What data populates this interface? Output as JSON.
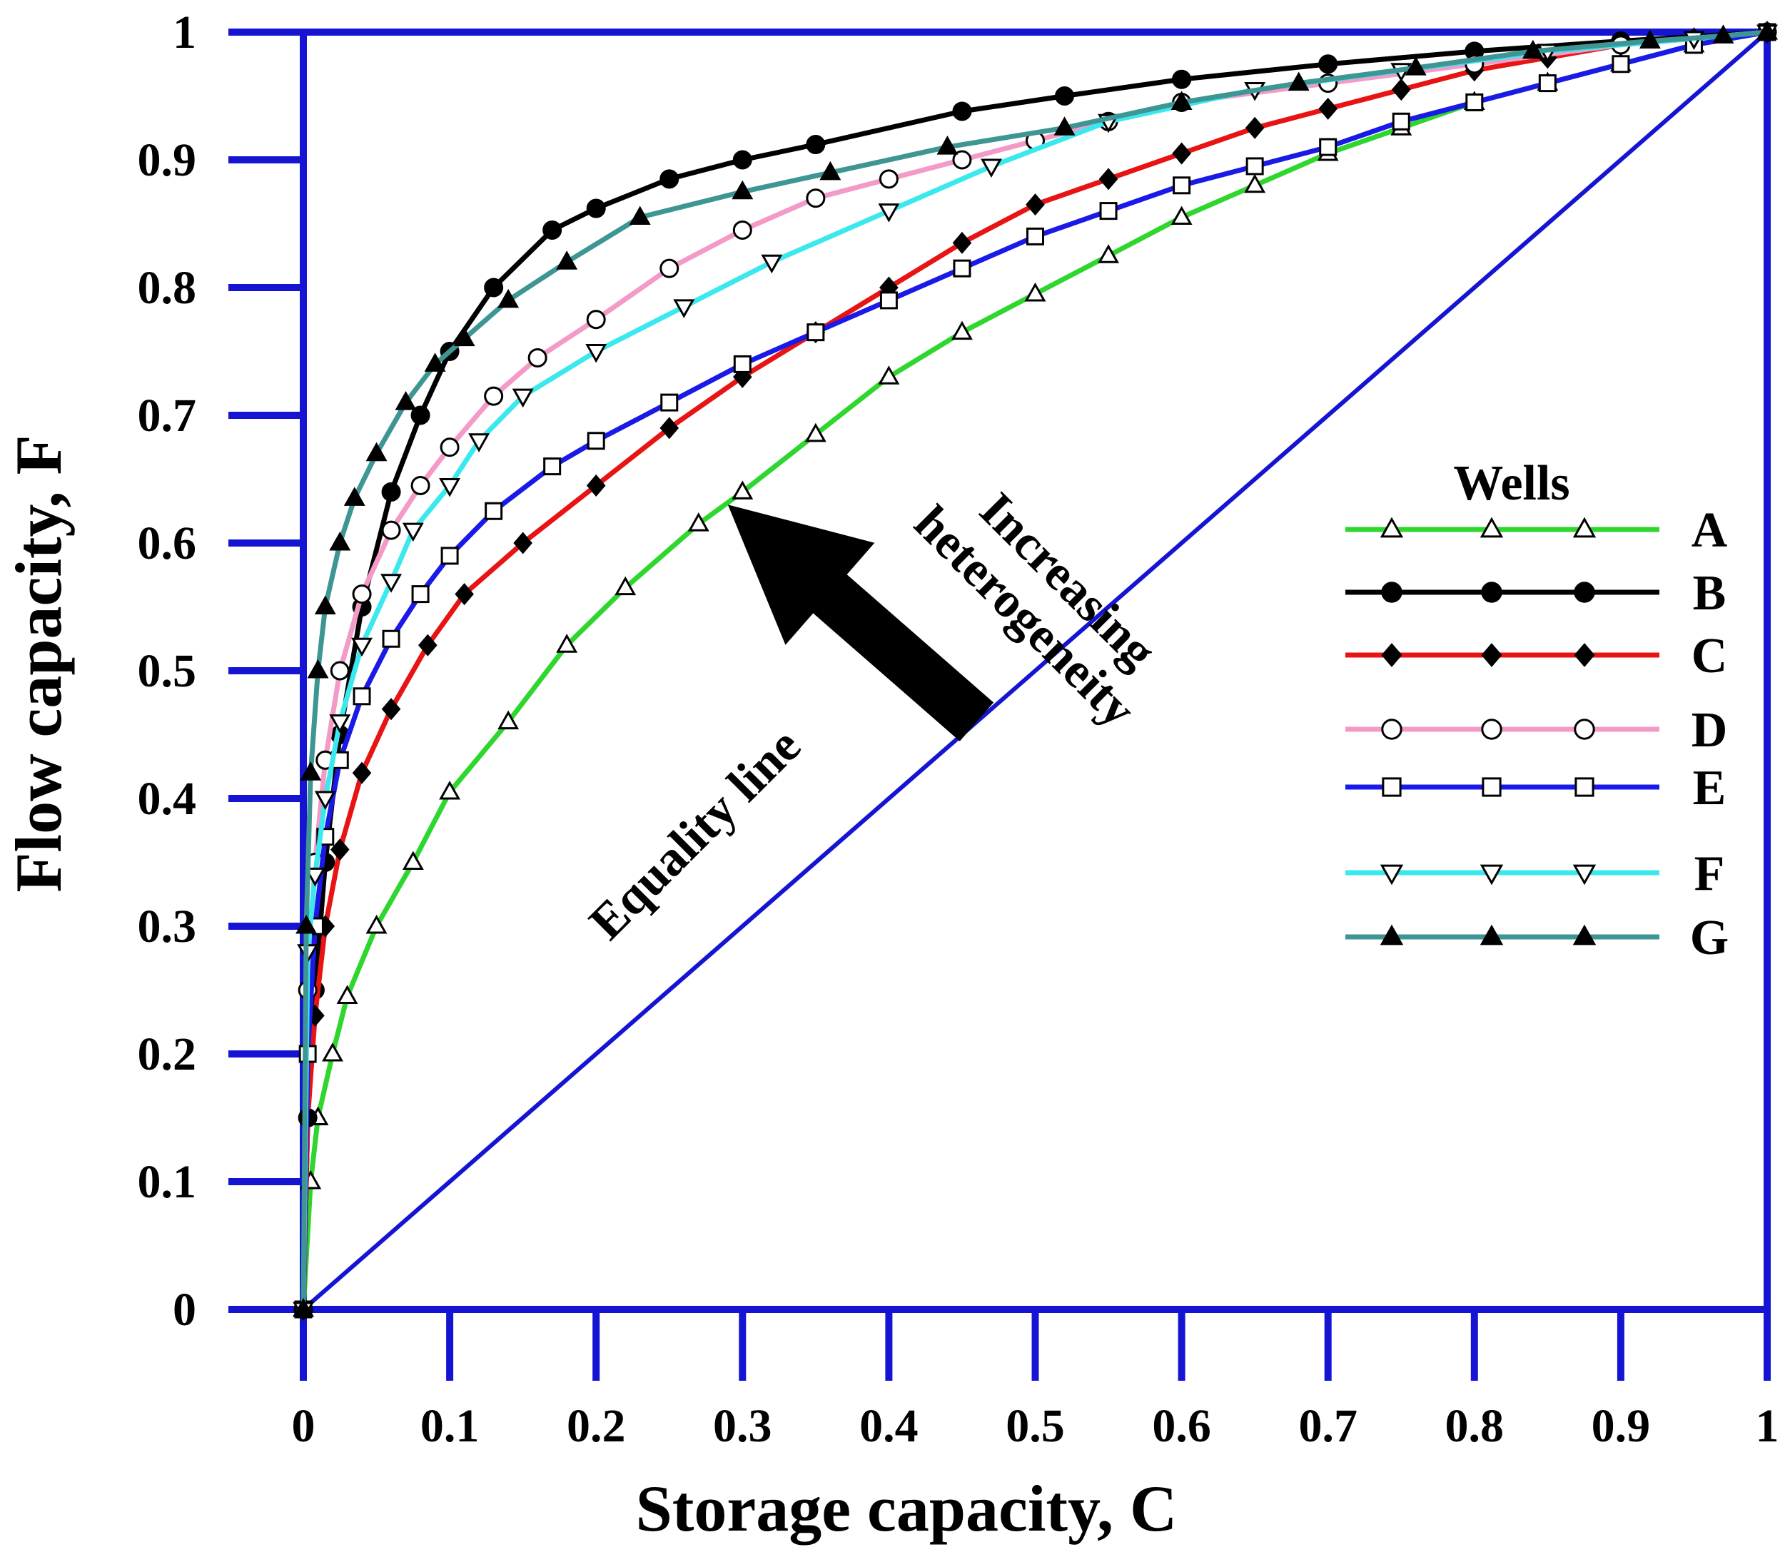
{
  "chart_data": {
    "type": "line",
    "title": "",
    "xlabel": "Storage capacity, C",
    "ylabel": "Flow capacity, F",
    "xlim": [
      0,
      1
    ],
    "ylim": [
      0,
      1
    ],
    "x_ticks": [
      "0",
      "0.1",
      "0.2",
      "0.3",
      "0.4",
      "0.5",
      "0.6",
      "0.7",
      "0.8",
      "0.9",
      "1"
    ],
    "y_ticks": [
      "0",
      "0.1",
      "0.2",
      "0.3",
      "0.4",
      "0.5",
      "0.6",
      "0.7",
      "0.8",
      "0.9",
      "1"
    ],
    "legend_title": "Wells",
    "legend_position": "right",
    "reference_line": {
      "label": "Equality line",
      "color": "#1414d2",
      "x": [
        0,
        1
      ],
      "y": [
        0,
        1
      ]
    },
    "annotation": {
      "text_lines": [
        "Increasing",
        "heterogeneity"
      ],
      "arrow_from": [
        0.46,
        0.46
      ],
      "arrow_to": [
        0.29,
        0.63
      ]
    },
    "series": [
      {
        "name": "A",
        "color": "#2ed62e",
        "marker": "triangle-up-open",
        "x": [
          0,
          0.005,
          0.01,
          0.02,
          0.03,
          0.05,
          0.075,
          0.1,
          0.14,
          0.18,
          0.22,
          0.27,
          0.3,
          0.35,
          0.4,
          0.45,
          0.5,
          0.55,
          0.6,
          0.65,
          0.7,
          0.75,
          0.8,
          0.85,
          0.9,
          0.95,
          1
        ],
        "y": [
          0,
          0.1,
          0.15,
          0.2,
          0.245,
          0.3,
          0.35,
          0.405,
          0.46,
          0.52,
          0.565,
          0.615,
          0.64,
          0.685,
          0.73,
          0.765,
          0.795,
          0.825,
          0.855,
          0.88,
          0.905,
          0.925,
          0.945,
          0.96,
          0.975,
          0.99,
          1
        ]
      },
      {
        "name": "B",
        "color": "#000000",
        "marker": "circle-filled",
        "x": [
          0,
          0.003,
          0.008,
          0.015,
          0.025,
          0.04,
          0.06,
          0.08,
          0.1,
          0.13,
          0.17,
          0.2,
          0.25,
          0.3,
          0.35,
          0.45,
          0.52,
          0.6,
          0.7,
          0.8,
          0.9,
          1
        ],
        "y": [
          0,
          0.15,
          0.25,
          0.35,
          0.45,
          0.55,
          0.64,
          0.7,
          0.75,
          0.8,
          0.845,
          0.862,
          0.885,
          0.9,
          0.912,
          0.938,
          0.95,
          0.963,
          0.975,
          0.985,
          0.993,
          1
        ]
      },
      {
        "name": "C",
        "color": "#e81414",
        "marker": "diamond-filled",
        "x": [
          0,
          0.003,
          0.008,
          0.015,
          0.025,
          0.04,
          0.06,
          0.085,
          0.11,
          0.15,
          0.2,
          0.25,
          0.3,
          0.35,
          0.4,
          0.45,
          0.5,
          0.55,
          0.6,
          0.65,
          0.7,
          0.75,
          0.8,
          0.85,
          0.9,
          0.95,
          1
        ],
        "y": [
          0,
          0.15,
          0.23,
          0.3,
          0.36,
          0.42,
          0.47,
          0.52,
          0.56,
          0.6,
          0.645,
          0.69,
          0.73,
          0.765,
          0.8,
          0.835,
          0.865,
          0.885,
          0.905,
          0.925,
          0.94,
          0.955,
          0.97,
          0.98,
          0.99,
          0.995,
          1
        ]
      },
      {
        "name": "D",
        "color": "#f39ac7",
        "marker": "circle-open",
        "x": [
          0,
          0.003,
          0.008,
          0.015,
          0.025,
          0.04,
          0.06,
          0.08,
          0.1,
          0.13,
          0.16,
          0.2,
          0.25,
          0.3,
          0.35,
          0.4,
          0.45,
          0.5,
          0.55,
          0.6,
          0.7,
          0.8,
          0.9,
          1
        ],
        "y": [
          0,
          0.25,
          0.35,
          0.43,
          0.5,
          0.56,
          0.61,
          0.645,
          0.675,
          0.715,
          0.745,
          0.775,
          0.815,
          0.845,
          0.87,
          0.885,
          0.9,
          0.915,
          0.93,
          0.945,
          0.96,
          0.975,
          0.99,
          1
        ]
      },
      {
        "name": "E",
        "color": "#1a1ae8",
        "marker": "square-open",
        "x": [
          0,
          0.003,
          0.008,
          0.015,
          0.025,
          0.04,
          0.06,
          0.08,
          0.1,
          0.13,
          0.17,
          0.2,
          0.25,
          0.3,
          0.35,
          0.4,
          0.45,
          0.5,
          0.55,
          0.6,
          0.65,
          0.7,
          0.75,
          0.8,
          0.85,
          0.9,
          0.95,
          1
        ],
        "y": [
          0,
          0.2,
          0.3,
          0.37,
          0.43,
          0.48,
          0.525,
          0.56,
          0.59,
          0.625,
          0.66,
          0.68,
          0.71,
          0.74,
          0.765,
          0.79,
          0.815,
          0.84,
          0.86,
          0.88,
          0.895,
          0.91,
          0.93,
          0.945,
          0.96,
          0.975,
          0.99,
          1
        ]
      },
      {
        "name": "F",
        "color": "#3ae8ee",
        "marker": "triangle-down-open",
        "x": [
          0,
          0.003,
          0.008,
          0.015,
          0.025,
          0.04,
          0.06,
          0.075,
          0.1,
          0.12,
          0.15,
          0.2,
          0.26,
          0.32,
          0.4,
          0.47,
          0.55,
          0.65,
          0.75,
          0.85,
          0.95,
          1
        ],
        "y": [
          0,
          0.28,
          0.34,
          0.4,
          0.46,
          0.52,
          0.57,
          0.61,
          0.645,
          0.68,
          0.715,
          0.75,
          0.785,
          0.82,
          0.86,
          0.895,
          0.93,
          0.955,
          0.97,
          0.985,
          0.995,
          1
        ]
      },
      {
        "name": "G",
        "color": "#3e9694",
        "marker": "triangle-up-filled",
        "x": [
          0,
          0.002,
          0.005,
          0.01,
          0.015,
          0.025,
          0.035,
          0.05,
          0.07,
          0.09,
          0.11,
          0.14,
          0.18,
          0.23,
          0.3,
          0.36,
          0.44,
          0.52,
          0.6,
          0.68,
          0.76,
          0.84,
          0.92,
          0.97,
          1
        ],
        "y": [
          0,
          0.3,
          0.42,
          0.5,
          0.55,
          0.6,
          0.635,
          0.67,
          0.71,
          0.74,
          0.76,
          0.79,
          0.82,
          0.855,
          0.875,
          0.89,
          0.91,
          0.925,
          0.945,
          0.96,
          0.972,
          0.985,
          0.993,
          0.997,
          1
        ]
      }
    ]
  }
}
